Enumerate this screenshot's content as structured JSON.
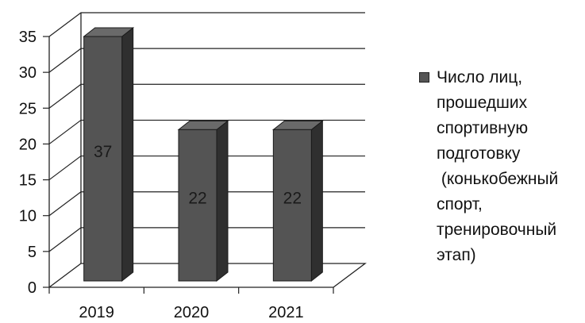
{
  "chart_data": {
    "type": "bar",
    "categories": [
      "2019",
      "2020",
      "2021"
    ],
    "series": [
      {
        "name": "Число лиц,\nпрошедших\nспортивную\nподготовку\n (конькобежный\nспорт,\nтренировочный\nэтап)",
        "values": [
          37,
          22,
          22
        ]
      }
    ],
    "data_labels": [
      "37",
      "22",
      "22"
    ],
    "ylim": [
      0,
      35
    ],
    "yticks": [
      0,
      5,
      10,
      15,
      20,
      25,
      30,
      35
    ],
    "grid": true,
    "legend": "right",
    "colors": {
      "bar_front": "#545454",
      "bar_side": "#2f2f2f",
      "bar_top": "#6a6a6a",
      "grid": "#222222"
    }
  }
}
